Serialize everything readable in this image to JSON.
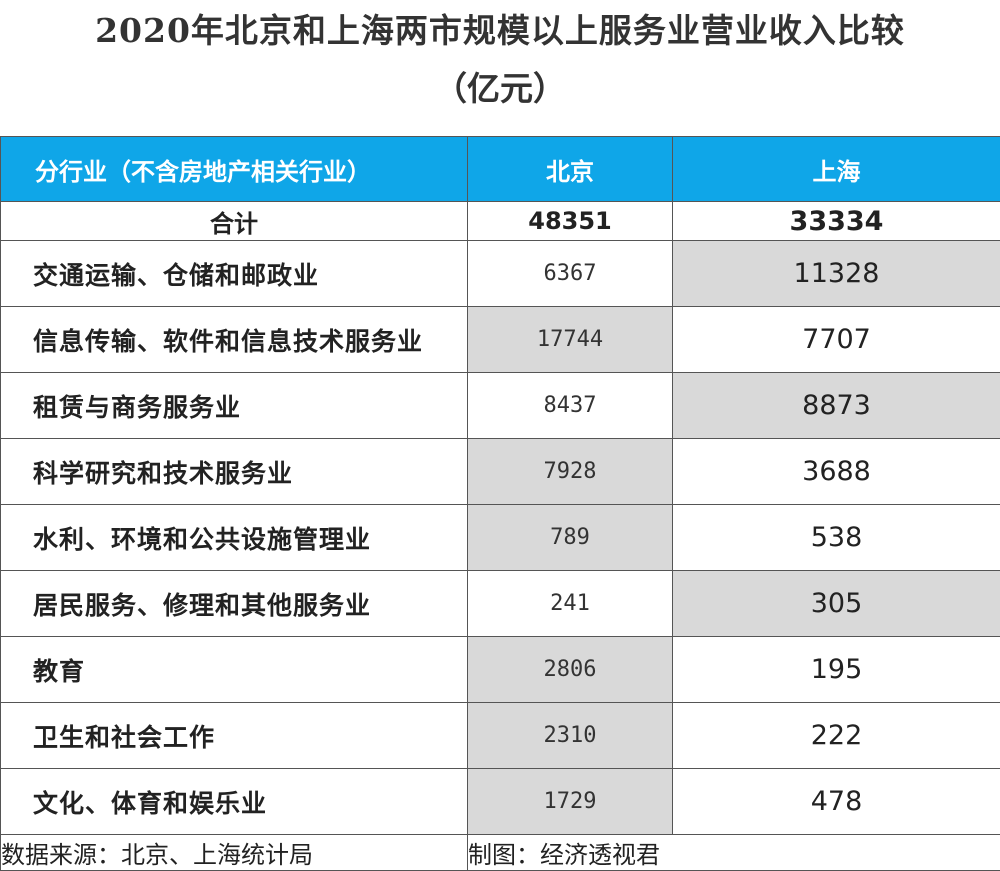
{
  "chart_data": {
    "type": "table",
    "title": "2020年北京和上海两市规模以上服务业营业收入比较",
    "subtitle": "（亿元）",
    "columns": [
      "分行业（不含房地产相关行业）",
      "北京",
      "上海"
    ],
    "total": {
      "label": "合计",
      "beijing": "48351",
      "shanghai": "33334"
    },
    "rows": [
      {
        "label": "交通运输、仓储和邮政业",
        "beijing": "6367",
        "shanghai": "11328",
        "highlight": "shanghai"
      },
      {
        "label": "信息传输、软件和信息技术服务业",
        "beijing": "17744",
        "shanghai": "7707",
        "highlight": "beijing"
      },
      {
        "label": "租赁与商务服务业",
        "beijing": "8437",
        "shanghai": "8873",
        "highlight": "shanghai"
      },
      {
        "label": "科学研究和技术服务业",
        "beijing": "7928",
        "shanghai": "3688",
        "highlight": "beijing"
      },
      {
        "label": "水利、环境和公共设施管理业",
        "beijing": "789",
        "shanghai": "538",
        "highlight": "beijing"
      },
      {
        "label": "居民服务、修理和其他服务业",
        "beijing": "241",
        "shanghai": "305",
        "highlight": "shanghai"
      },
      {
        "label": "教育",
        "beijing": "2806",
        "shanghai": "195",
        "highlight": "beijing"
      },
      {
        "label": "卫生和社会工作",
        "beijing": "2310",
        "shanghai": "222",
        "highlight": "beijing"
      },
      {
        "label": "文化、体育和娱乐业",
        "beijing": "1729",
        "shanghai": "478",
        "highlight": "beijing"
      }
    ],
    "source": "数据来源：北京、上海统计局",
    "credit": "制图：经济透视君",
    "colors": {
      "header": "#0fa6e8",
      "highlight": "#d9d9d9"
    }
  }
}
